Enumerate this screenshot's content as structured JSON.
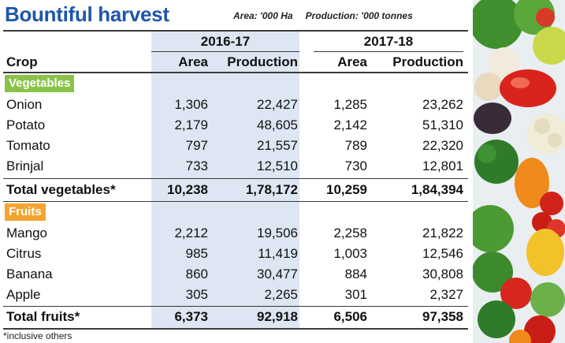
{
  "title": "Bountiful harvest",
  "units": {
    "area": "Area: '000 Ha",
    "production": "Production: '000 tonnes"
  },
  "years": [
    "2016-17",
    "2017-18"
  ],
  "headers": {
    "crop": "Crop",
    "area": "Area",
    "production": "Production"
  },
  "sections": {
    "vegetables": {
      "label": "Vegetables",
      "rows": [
        {
          "crop": "Onion",
          "a1": "1,306",
          "p1": "22,427",
          "a2": "1,285",
          "p2": "23,262"
        },
        {
          "crop": "Potato",
          "a1": "2,179",
          "p1": "48,605",
          "a2": "2,142",
          "p2": "51,310"
        },
        {
          "crop": "Tomato",
          "a1": "797",
          "p1": "21,557",
          "a2": "789",
          "p2": "22,320"
        },
        {
          "crop": "Brinjal",
          "a1": "733",
          "p1": "12,510",
          "a2": "730",
          "p2": "12,801"
        }
      ],
      "total": {
        "crop": "Total vegetables*",
        "a1": "10,238",
        "p1": "1,78,172",
        "a2": "10,259",
        "p2": "1,84,394"
      }
    },
    "fruits": {
      "label": "Fruits",
      "rows": [
        {
          "crop": "Mango",
          "a1": "2,212",
          "p1": "19,506",
          "a2": "2,258",
          "p2": "21,822"
        },
        {
          "crop": "Citrus",
          "a1": "985",
          "p1": "11,419",
          "a2": "1,003",
          "p2": "12,546"
        },
        {
          "crop": "Banana",
          "a1": "860",
          "p1": "30,477",
          "a2": "884",
          "p2": "30,808"
        },
        {
          "crop": "Apple",
          "a1": "305",
          "p1": "2,265",
          "a2": "301",
          "p2": "2,327"
        }
      ],
      "total": {
        "crop": "Total fruits*",
        "a1": "6,373",
        "p1": "92,918",
        "a2": "6,506",
        "p2": "97,358"
      }
    }
  },
  "footnote": "*inclusive others",
  "colors": {
    "title": "#1f56a8",
    "vegetables_tag": "#8bc34a",
    "fruits_tag": "#f6a430",
    "shade": "#dde6f2"
  },
  "photo": "vegetables-and-fruits-image"
}
